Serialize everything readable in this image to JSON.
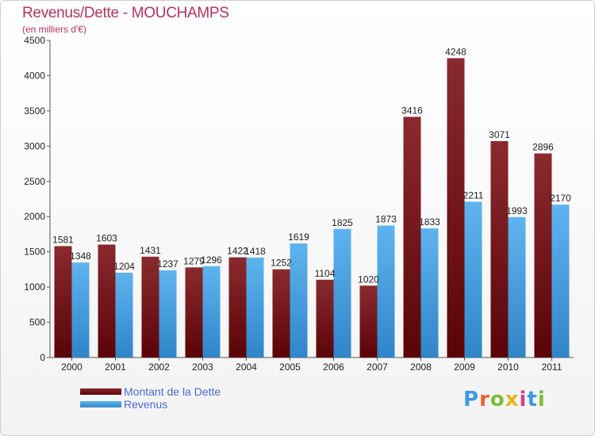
{
  "header": {
    "title": "Revenus/Dette - MOUCHAMPS",
    "subtitle": "(en milliers d'€)"
  },
  "chart_data": {
    "type": "bar",
    "categories": [
      "2000",
      "2001",
      "2002",
      "2003",
      "2004",
      "2005",
      "2006",
      "2007",
      "2008",
      "2009",
      "2010",
      "2011"
    ],
    "series": [
      {
        "name": "Montant de la Dette",
        "color": "#7a1a1f",
        "values": [
          1581,
          1603,
          1431,
          1279,
          1422,
          1252,
          1104,
          1020,
          3416,
          4248,
          3071,
          2896
        ]
      },
      {
        "name": "Revenus",
        "color": "#4aa6e6",
        "values": [
          1348,
          1204,
          1237,
          1296,
          1418,
          1619,
          1825,
          1873,
          1833,
          2211,
          1993,
          2170
        ]
      }
    ],
    "y_ticks": [
      0,
      500,
      1000,
      1500,
      2000,
      2500,
      3000,
      3500,
      4000,
      4500
    ],
    "ylim": [
      0,
      4500
    ],
    "grid": false,
    "legend_position": "bottom-left"
  },
  "logo": {
    "letters": [
      "P",
      "r",
      "o",
      "x",
      "i",
      "t",
      "i"
    ],
    "colors": [
      "#3b9be0",
      "#e8622c",
      "#7cbf3a",
      "#e8b21c",
      "#d43f8d",
      "#3b9be0",
      "#7cbf3a"
    ]
  }
}
